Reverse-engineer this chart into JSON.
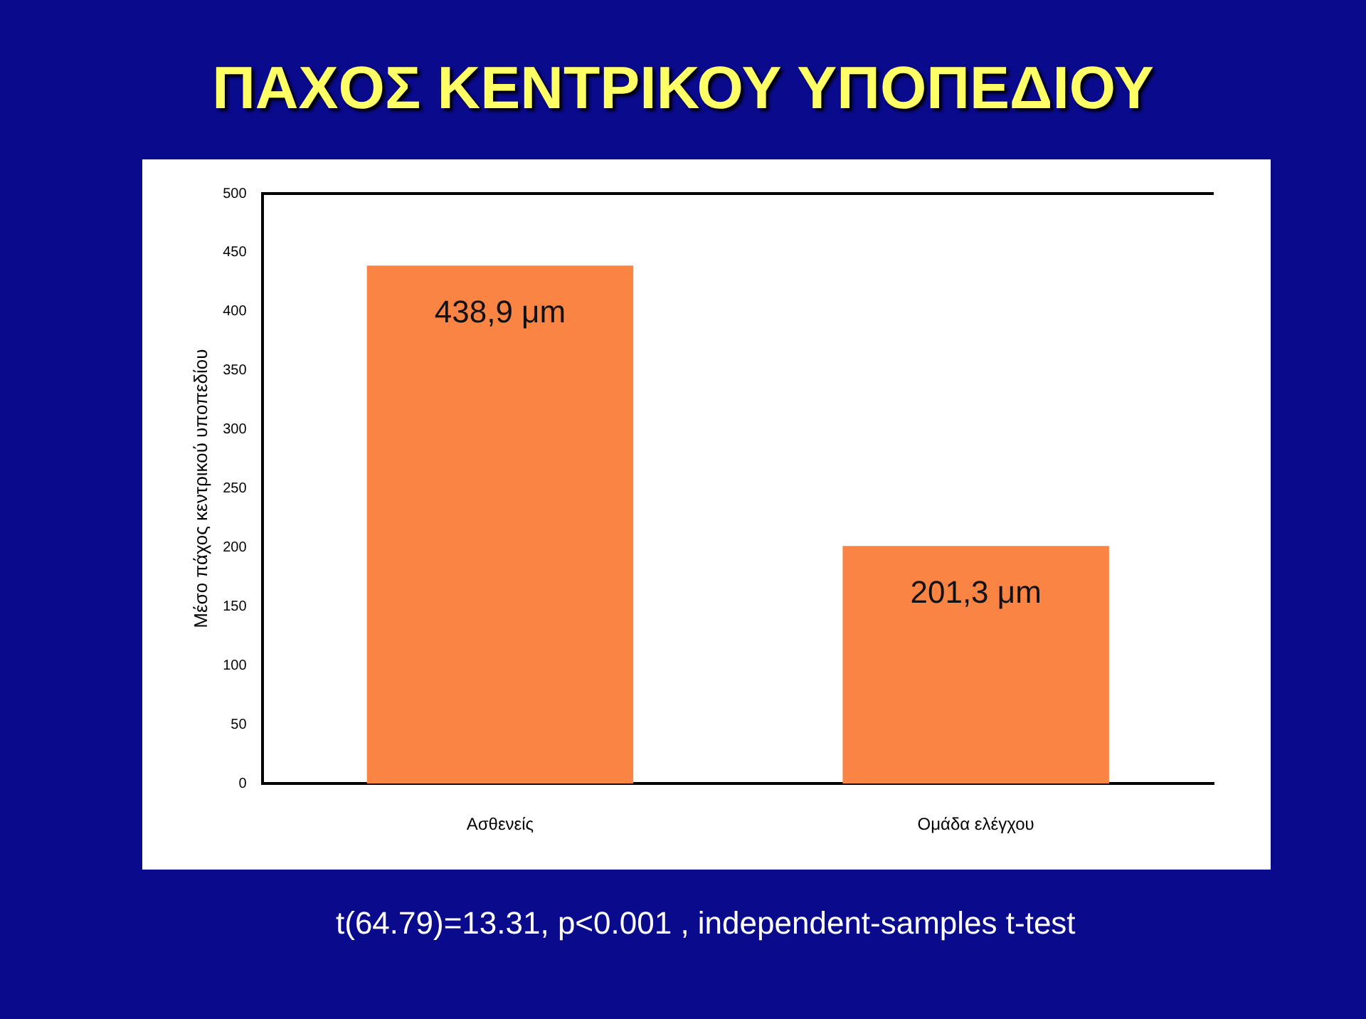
{
  "chart_data": {
    "type": "bar",
    "title": "ΠΑΧΟΣ ΚΕΝΤΡΙΚΟΥ ΥΠΟΠΕΔΙΟΥ",
    "ylabel": "Μέσο πάχος κεντρικού υποπεδίου",
    "categories": [
      "Ασθενείς",
      "Ομάδα ελέγχου"
    ],
    "values": [
      438.9,
      201.3
    ],
    "value_labels": [
      "438,9 μm",
      "201,3 μm"
    ],
    "color": "#f98444",
    "ylim": [
      0,
      500
    ],
    "yticks": [
      0,
      50,
      100,
      150,
      200,
      250,
      300,
      350,
      400,
      450,
      500
    ],
    "grid": false,
    "legend": false,
    "annotations": [
      "t(64.79)=13.31, p<0.001 , independent-samples t-test"
    ]
  }
}
